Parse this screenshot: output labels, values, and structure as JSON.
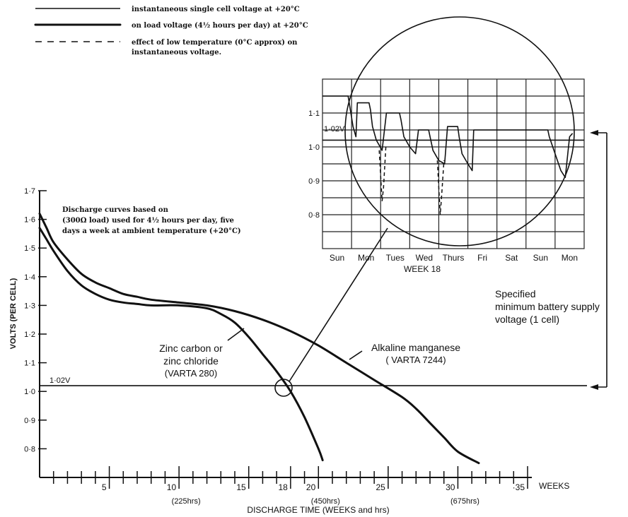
{
  "legend": {
    "entries": [
      {
        "style": "thin",
        "label": "instantaneous single cell voltage at +20°C"
      },
      {
        "style": "thick",
        "label": "on load voltage (4½ hours per day) at +20°C"
      },
      {
        "style": "dashed",
        "label_line1": "effect of low temperature (0°C approx) on",
        "label_line2": "instantaneous voltage."
      }
    ]
  },
  "note": {
    "line1": "Discharge curves based on",
    "line2": "(300Ω load) used for 4½ hours per day, five",
    "line3": "days a week at ambient temperature (+20°C)"
  },
  "annotations": {
    "zinc_line1": "Zinc carbon or",
    "zinc_line2": "zinc chloride",
    "zinc_line3": "(VARTA 280)",
    "alk_line1": "Alkaline manganese",
    "alk_line2": "( VARTA 7244)",
    "spec_line1": "Specified",
    "spec_line2": "minimum battery supply",
    "spec_line3": "voltage (1 cell)",
    "threshold_label": "1·02V",
    "inset_threshold_label": "1·02V"
  },
  "chart_data": [
    {
      "type": "line",
      "xlabel": "DISCHARGE TIME (WEEKS and hrs)",
      "ylabel": "VOLTS (PER CELL)",
      "x_unit_label": "WEEKS",
      "xlim": [
        0,
        35
      ],
      "ylim": [
        0.7,
        1.7
      ],
      "x_ticks": [
        5,
        10,
        15,
        18,
        20,
        25,
        30,
        35
      ],
      "x_tick_labels": [
        "5",
        "10",
        "15",
        "18",
        "20",
        "25",
        "30",
        "·35"
      ],
      "x_hour_labels": [
        {
          "x": 10,
          "label": "(225hrs)"
        },
        {
          "x": 20,
          "label": "(450hrs)"
        },
        {
          "x": 30,
          "label": "(675hrs)"
        }
      ],
      "y_ticks": [
        0.8,
        0.9,
        1.0,
        1.1,
        1.2,
        1.3,
        1.4,
        1.5,
        1.6,
        1.7
      ],
      "y_tick_labels": [
        "0·8",
        "0·9",
        "1·0",
        "1·1",
        "1·2",
        "1·3",
        "1·4",
        "1·5",
        "1·6",
        "1·7"
      ],
      "threshold": 1.02,
      "series": [
        {
          "name": "Alkaline manganese ( VARTA 7244)",
          "x": [
            0,
            0.5,
            1,
            2,
            3,
            4,
            5,
            6,
            7,
            8,
            10,
            12,
            14,
            16,
            18,
            20,
            22,
            24,
            26,
            27,
            28,
            29,
            30,
            31.5
          ],
          "y": [
            1.62,
            1.57,
            1.52,
            1.46,
            1.41,
            1.38,
            1.36,
            1.34,
            1.33,
            1.32,
            1.31,
            1.3,
            1.28,
            1.25,
            1.21,
            1.16,
            1.1,
            1.04,
            0.98,
            0.94,
            0.89,
            0.84,
            0.79,
            0.75
          ]
        },
        {
          "name": "Zinc carbon or zinc chloride (VARTA 280)",
          "x": [
            0,
            0.5,
            1,
            2,
            3,
            4,
            5,
            6,
            7,
            8,
            10,
            12,
            13,
            14,
            15,
            16,
            17,
            18,
            19,
            20,
            20.3
          ],
          "y": [
            1.57,
            1.53,
            1.49,
            1.42,
            1.37,
            1.34,
            1.32,
            1.31,
            1.305,
            1.3,
            1.3,
            1.29,
            1.27,
            1.24,
            1.19,
            1.13,
            1.07,
            1.0,
            0.91,
            0.8,
            0.76
          ]
        }
      ]
    },
    {
      "type": "line",
      "title": "WEEK 18",
      "categories": [
        "Sun",
        "Mon",
        "Tues",
        "Wed",
        "Thurs",
        "Fri",
        "Sat",
        "Sun",
        "Mon"
      ],
      "ylim": [
        0.7,
        1.2
      ],
      "y_ticks": [
        0.8,
        0.9,
        1.0,
        1.1
      ],
      "y_tick_labels": [
        "0·8",
        "0·9",
        "1·0",
        "1·1"
      ],
      "threshold": 1.02,
      "series": [
        {
          "style": "thin",
          "x": [
            0,
            0.88,
            0.92,
            1.05,
            1.15,
            1.2,
            1.6,
            1.65,
            1.72,
            1.85,
            2.05,
            2.2,
            2.25,
            2.65,
            2.7,
            2.8,
            3.0,
            3.2,
            3.3,
            3.4,
            3.65,
            3.7,
            3.8,
            4.0,
            4.2,
            4.3,
            4.4,
            4.65,
            4.7,
            4.8,
            5.0,
            5.15,
            5.2,
            5.3,
            7.75,
            7.8,
            8.0,
            8.2,
            8.35,
            8.5,
            8.6
          ],
          "y": [
            1.15,
            1.15,
            1.13,
            1.06,
            1.03,
            1.13,
            1.13,
            1.11,
            1.06,
            1.02,
            0.99,
            1.1,
            1.1,
            1.1,
            1.08,
            1.03,
            1.0,
            0.98,
            1.05,
            1.05,
            1.05,
            1.03,
            0.99,
            0.96,
            0.95,
            1.06,
            1.06,
            1.06,
            1.03,
            0.98,
            0.95,
            0.93,
            1.05,
            1.05,
            1.05,
            1.03,
            0.98,
            0.93,
            0.91,
            1.03,
            1.04
          ]
        },
        {
          "style": "dashed",
          "x": [
            1.95,
            2.05,
            2.1,
            2.18
          ],
          "y": [
            0.99,
            0.84,
            0.88,
            1.0
          ]
        },
        {
          "style": "dashed",
          "x": [
            3.95,
            4.05,
            4.1,
            4.18
          ],
          "y": [
            0.96,
            0.8,
            0.86,
            0.96
          ]
        }
      ]
    }
  ]
}
